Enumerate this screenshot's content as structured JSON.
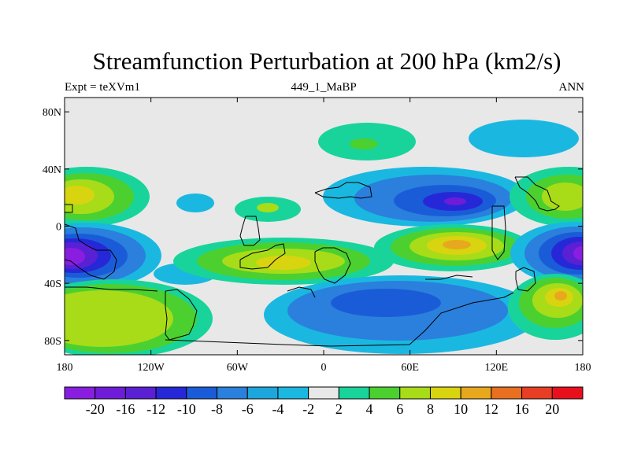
{
  "chart_data": {
    "type": "heatmap",
    "title": "Streamfunction Perturbation at 200 hPa (km2/s)",
    "left_string": "Expt = teXVm1",
    "center_string": "449_1_MaBP",
    "right_string": "ANN",
    "x_tick_labels": [
      "180",
      "120W",
      "60W",
      "0",
      "60E",
      "120E",
      "180"
    ],
    "y_tick_labels": [
      "80N",
      "40N",
      "0",
      "40S",
      "80S"
    ],
    "x_range": [
      -180,
      180
    ],
    "y_range": [
      -90,
      90
    ],
    "colorbar": {
      "levels": [
        -20,
        -16,
        -12,
        -10,
        -8,
        -6,
        -4,
        -2,
        2,
        4,
        6,
        8,
        10,
        12,
        16,
        20
      ],
      "labels": [
        "-20",
        "-16",
        "-12",
        "-10",
        "-8",
        "-6",
        "-4",
        "-2",
        "2",
        "4",
        "6",
        "8",
        "10",
        "12",
        "16",
        "20"
      ],
      "colors": [
        "#8a1ee0",
        "#6e1cd8",
        "#5a20d4",
        "#2628d8",
        "#1a5cd8",
        "#2a80dc",
        "#1ca6dc",
        "#1ab8e0",
        "#e8e8e8",
        "#18d49a",
        "#4cd030",
        "#a8dc18",
        "#d8d410",
        "#e8a81e",
        "#e87020",
        "#e83e24",
        "#e8101c"
      ]
    },
    "features": [
      {
        "lon": -165,
        "lat": 20,
        "value": 10
      },
      {
        "lon": -170,
        "lat": -25,
        "value": -20
      },
      {
        "lon": -150,
        "lat": -65,
        "value": 6
      },
      {
        "lon": -80,
        "lat": 16,
        "value": -2
      },
      {
        "lon": -40,
        "lat": 13,
        "value": 6
      },
      {
        "lon": -70,
        "lat": -20,
        "value": 6
      },
      {
        "lon": -30,
        "lat": -28,
        "value": 10
      },
      {
        "lon": -60,
        "lat": -40,
        "value": -2
      },
      {
        "lon": 30,
        "lat": 57,
        "value": 6
      },
      {
        "lon": 150,
        "lat": 62,
        "value": -4
      },
      {
        "lon": 90,
        "lat": 17,
        "value": -16
      },
      {
        "lon": 95,
        "lat": -15,
        "value": 10
      },
      {
        "lon": 40,
        "lat": -62,
        "value": -8
      },
      {
        "lon": 170,
        "lat": 25,
        "value": 8
      },
      {
        "lon": 172,
        "lat": -20,
        "value": -20
      },
      {
        "lon": 165,
        "lat": -50,
        "value": 12
      }
    ]
  }
}
